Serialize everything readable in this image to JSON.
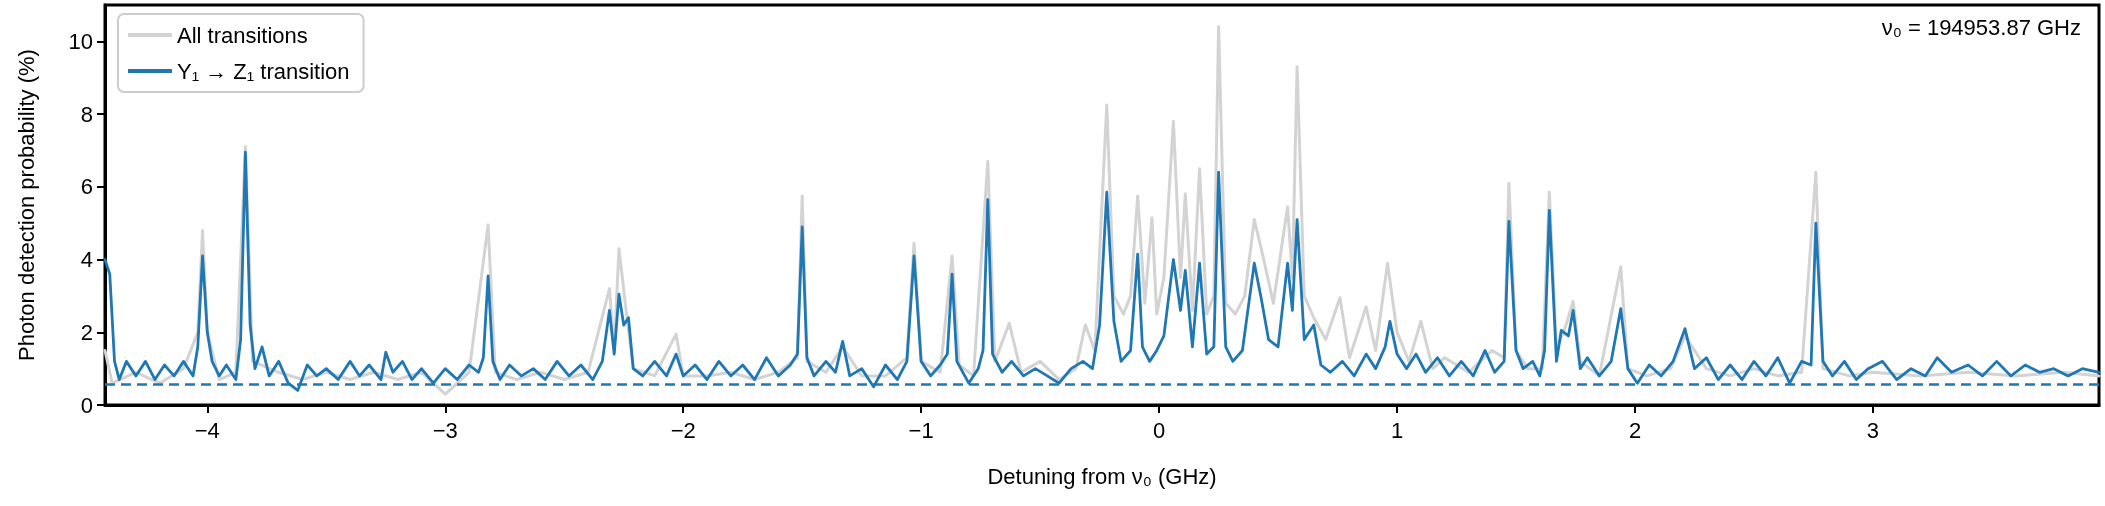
{
  "chart_data": {
    "type": "line",
    "xlabel": "Detuning from ν₀ (GHz)",
    "ylabel": "Photon detection probability (%)",
    "annotations": [
      "ν₀ = 194953.87 GHz"
    ],
    "xlim": [
      -4.43,
      3.95
    ],
    "xticks": [
      -4,
      -3,
      -2,
      -1,
      0,
      1,
      2,
      3
    ],
    "ylim": [
      0,
      11
    ],
    "yticks": [
      0,
      2,
      4,
      6,
      8,
      10
    ],
    "grid": false,
    "legend": "top left",
    "marker": "none",
    "line_style": "solid",
    "ref_lines": [
      {
        "axis": "y",
        "value": 0.58,
        "color": "#1f77b4",
        "line_style": "dashed"
      }
    ],
    "series": [
      {
        "name": "All transitions",
        "color": "#d3d3d3",
        "x": [
          -4.43,
          -4.4,
          -4.3,
          -4.2,
          -4.1,
          -4.04,
          -4.02,
          -4.0,
          -3.95,
          -3.88,
          -3.84,
          -3.81,
          -3.7,
          -3.6,
          -3.5,
          -3.4,
          -3.3,
          -3.2,
          -3.1,
          -3.0,
          -2.9,
          -2.82,
          -2.79,
          -2.7,
          -2.6,
          -2.5,
          -2.4,
          -2.31,
          -2.29,
          -2.27,
          -2.24,
          -2.21,
          -2.12,
          -2.03,
          -2.0,
          -1.9,
          -1.8,
          -1.7,
          -1.6,
          -1.52,
          -1.5,
          -1.48,
          -1.4,
          -1.33,
          -1.25,
          -1.15,
          -1.06,
          -1.03,
          -1.0,
          -0.92,
          -0.87,
          -0.84,
          -0.78,
          -0.72,
          -0.69,
          -0.63,
          -0.58,
          -0.5,
          -0.42,
          -0.35,
          -0.31,
          -0.27,
          -0.22,
          -0.19,
          -0.15,
          -0.12,
          -0.09,
          -0.06,
          -0.03,
          -0.01,
          0.02,
          0.06,
          0.09,
          0.11,
          0.14,
          0.17,
          0.2,
          0.23,
          0.25,
          0.28,
          0.32,
          0.36,
          0.4,
          0.44,
          0.48,
          0.54,
          0.56,
          0.58,
          0.61,
          0.65,
          0.7,
          0.76,
          0.8,
          0.87,
          0.91,
          0.96,
          1.0,
          1.05,
          1.1,
          1.15,
          1.2,
          1.3,
          1.4,
          1.45,
          1.47,
          1.5,
          1.55,
          1.61,
          1.64,
          1.67,
          1.71,
          1.74,
          1.77,
          1.85,
          1.94,
          1.97,
          2.05,
          2.15,
          2.21,
          2.3,
          2.4,
          2.5,
          2.6,
          2.7,
          2.76,
          2.79,
          2.9,
          3.0,
          3.2,
          3.4,
          3.6,
          3.8,
          3.95
        ],
        "values": [
          1.5,
          0.6,
          0.9,
          0.6,
          1.0,
          2.0,
          4.8,
          2.0,
          0.7,
          0.9,
          7.1,
          1.2,
          0.9,
          0.7,
          0.9,
          0.7,
          0.9,
          0.7,
          0.9,
          0.3,
          0.9,
          4.95,
          0.9,
          0.7,
          0.9,
          0.7,
          0.9,
          3.2,
          1.5,
          4.3,
          2.6,
          1.0,
          0.8,
          1.95,
          0.8,
          0.8,
          0.9,
          0.7,
          0.9,
          1.3,
          5.75,
          1.2,
          0.9,
          1.6,
          0.8,
          0.8,
          1.3,
          4.45,
          1.2,
          0.9,
          4.1,
          1.1,
          0.8,
          6.7,
          1.2,
          2.25,
          0.9,
          1.2,
          0.7,
          1.0,
          2.2,
          1.5,
          8.25,
          3.0,
          2.5,
          3.0,
          5.75,
          2.8,
          5.15,
          2.5,
          3.5,
          7.8,
          3.5,
          5.8,
          2.6,
          6.5,
          2.5,
          3.0,
          10.4,
          2.8,
          2.5,
          3.0,
          5.1,
          4.0,
          2.8,
          5.45,
          3.5,
          9.3,
          3.0,
          2.4,
          1.8,
          2.95,
          1.3,
          2.7,
          1.5,
          3.9,
          2.0,
          1.2,
          2.3,
          1.0,
          1.3,
          0.9,
          1.5,
          1.3,
          6.1,
          1.5,
          1.0,
          1.0,
          5.85,
          1.5,
          2.2,
          2.85,
          1.2,
          0.8,
          3.8,
          1.0,
          0.8,
          1.0,
          1.9,
          1.0,
          0.8,
          1.0,
          0.8,
          0.9,
          6.4,
          1.0,
          0.8,
          0.9,
          0.8,
          0.9,
          0.8,
          0.9,
          0.8
        ]
      },
      {
        "name": "Y₁ → Z₁ transition",
        "color": "#1f77b4",
        "x": [
          -4.43,
          -4.41,
          -4.39,
          -4.37,
          -4.34,
          -4.3,
          -4.26,
          -4.22,
          -4.18,
          -4.14,
          -4.1,
          -4.06,
          -4.04,
          -4.02,
          -4.0,
          -3.98,
          -3.95,
          -3.92,
          -3.88,
          -3.86,
          -3.84,
          -3.82,
          -3.8,
          -3.77,
          -3.74,
          -3.7,
          -3.66,
          -3.62,
          -3.58,
          -3.54,
          -3.5,
          -3.45,
          -3.4,
          -3.36,
          -3.32,
          -3.27,
          -3.25,
          -3.22,
          -3.18,
          -3.14,
          -3.1,
          -3.05,
          -3.0,
          -2.95,
          -2.9,
          -2.86,
          -2.84,
          -2.82,
          -2.8,
          -2.77,
          -2.73,
          -2.68,
          -2.63,
          -2.58,
          -2.53,
          -2.48,
          -2.43,
          -2.38,
          -2.34,
          -2.31,
          -2.29,
          -2.27,
          -2.25,
          -2.23,
          -2.21,
          -2.17,
          -2.12,
          -2.07,
          -2.03,
          -2.0,
          -1.95,
          -1.9,
          -1.85,
          -1.8,
          -1.75,
          -1.7,
          -1.65,
          -1.6,
          -1.55,
          -1.52,
          -1.5,
          -1.48,
          -1.45,
          -1.4,
          -1.36,
          -1.33,
          -1.3,
          -1.25,
          -1.2,
          -1.15,
          -1.1,
          -1.06,
          -1.03,
          -1.0,
          -0.96,
          -0.92,
          -0.89,
          -0.87,
          -0.85,
          -0.8,
          -0.76,
          -0.74,
          -0.72,
          -0.7,
          -0.66,
          -0.62,
          -0.57,
          -0.52,
          -0.47,
          -0.42,
          -0.37,
          -0.32,
          -0.28,
          -0.25,
          -0.22,
          -0.19,
          -0.16,
          -0.12,
          -0.09,
          -0.07,
          -0.04,
          -0.01,
          0.02,
          0.06,
          0.09,
          0.11,
          0.14,
          0.17,
          0.2,
          0.23,
          0.25,
          0.28,
          0.31,
          0.35,
          0.4,
          0.43,
          0.46,
          0.5,
          0.54,
          0.56,
          0.58,
          0.61,
          0.65,
          0.68,
          0.72,
          0.77,
          0.82,
          0.87,
          0.91,
          0.95,
          0.97,
          1.0,
          1.04,
          1.08,
          1.12,
          1.17,
          1.22,
          1.27,
          1.32,
          1.37,
          1.41,
          1.45,
          1.47,
          1.5,
          1.53,
          1.57,
          1.6,
          1.62,
          1.64,
          1.67,
          1.69,
          1.72,
          1.74,
          1.77,
          1.8,
          1.85,
          1.9,
          1.94,
          1.97,
          2.01,
          2.06,
          2.11,
          2.16,
          2.21,
          2.25,
          2.3,
          2.35,
          2.4,
          2.45,
          2.5,
          2.55,
          2.6,
          2.65,
          2.7,
          2.74,
          2.76,
          2.79,
          2.83,
          2.88,
          2.93,
          2.98,
          3.04,
          3.1,
          3.16,
          3.22,
          3.27,
          3.33,
          3.4,
          3.46,
          3.52,
          3.58,
          3.64,
          3.7,
          3.76,
          3.82,
          3.88,
          3.95
        ],
        "values": [
          4.0,
          3.6,
          1.2,
          0.7,
          1.2,
          0.8,
          1.2,
          0.7,
          1.1,
          0.8,
          1.2,
          0.8,
          1.6,
          4.1,
          2.0,
          1.2,
          0.8,
          1.1,
          0.7,
          1.8,
          6.95,
          2.2,
          1.0,
          1.6,
          0.8,
          1.2,
          0.6,
          0.4,
          1.1,
          0.8,
          1.0,
          0.7,
          1.2,
          0.8,
          1.1,
          0.7,
          1.45,
          0.9,
          1.2,
          0.7,
          1.0,
          0.6,
          1.0,
          0.7,
          1.1,
          0.9,
          1.3,
          3.55,
          1.2,
          0.7,
          1.1,
          0.8,
          1.0,
          0.7,
          1.2,
          0.8,
          1.1,
          0.7,
          1.2,
          2.6,
          1.4,
          3.05,
          2.2,
          2.4,
          1.0,
          0.8,
          1.2,
          0.8,
          1.4,
          0.8,
          1.1,
          0.7,
          1.2,
          0.8,
          1.1,
          0.7,
          1.3,
          0.8,
          1.1,
          1.4,
          4.9,
          1.3,
          0.8,
          1.2,
          0.9,
          1.75,
          0.8,
          1.0,
          0.5,
          1.1,
          0.7,
          1.2,
          4.1,
          1.2,
          0.8,
          1.1,
          1.4,
          3.6,
          1.2,
          0.6,
          1.0,
          1.5,
          5.65,
          1.4,
          0.9,
          1.2,
          0.8,
          1.0,
          0.8,
          0.6,
          1.0,
          1.2,
          1.0,
          2.2,
          5.85,
          2.3,
          1.2,
          1.5,
          4.15,
          1.6,
          1.2,
          1.5,
          1.9,
          4.0,
          2.6,
          3.7,
          1.6,
          3.9,
          1.4,
          1.6,
          6.4,
          1.6,
          1.2,
          1.5,
          3.9,
          2.9,
          1.8,
          1.6,
          3.9,
          2.6,
          5.1,
          1.8,
          2.2,
          1.1,
          0.9,
          1.2,
          0.8,
          1.4,
          1.0,
          1.6,
          2.3,
          1.4,
          1.0,
          1.4,
          0.9,
          1.3,
          0.8,
          1.2,
          0.8,
          1.5,
          0.9,
          1.2,
          5.05,
          1.5,
          1.0,
          1.2,
          0.8,
          1.5,
          5.35,
          1.2,
          2.05,
          1.9,
          2.6,
          1.0,
          1.3,
          0.8,
          1.2,
          2.65,
          1.0,
          0.6,
          1.1,
          0.8,
          1.2,
          2.1,
          1.0,
          1.3,
          0.7,
          1.1,
          0.7,
          1.2,
          0.8,
          1.3,
          0.6,
          1.2,
          1.1,
          5.0,
          1.2,
          0.8,
          1.2,
          0.7,
          1.0,
          1.2,
          0.7,
          1.0,
          0.8,
          1.3,
          0.9,
          1.1,
          0.8,
          1.2,
          0.8,
          1.1,
          0.9,
          1.0,
          0.8,
          1.0,
          0.9
        ]
      }
    ]
  }
}
